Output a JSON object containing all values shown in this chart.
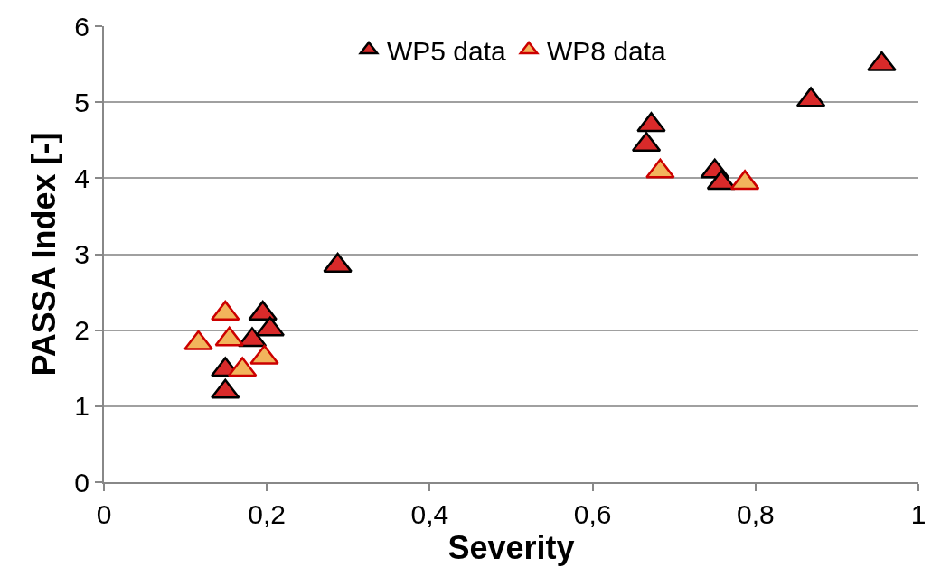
{
  "chart_data": {
    "type": "scatter",
    "xlabel": "Severity",
    "ylabel": "PASSA Index [-]",
    "xlim": [
      0,
      1
    ],
    "ylim": [
      0,
      6
    ],
    "xticks": [
      0,
      {
        "value": 0.2,
        "label": "0,2"
      },
      {
        "value": 0.4,
        "label": "0,4"
      },
      {
        "value": 0.6,
        "label": "0,6"
      },
      {
        "value": 0.8,
        "label": "0,8"
      },
      1
    ],
    "yticks": [
      0,
      1,
      2,
      3,
      4,
      5,
      6
    ],
    "grid": "y",
    "legend": "top",
    "marker": "triangle",
    "series": [
      {
        "name": "WP5 data",
        "color": "#d92a2a",
        "x": [
          0.149,
          0.149,
          0.18,
          0.182,
          0.195,
          0.204,
          0.287,
          0.666,
          0.672,
          0.75,
          0.758,
          0.868,
          0.955
        ],
        "values": [
          1.19,
          1.48,
          null,
          1.87,
          2.22,
          2.01,
          2.85,
          4.44,
          4.7,
          4.09,
          3.94,
          5.03,
          5.5
        ]
      },
      {
        "name": "WP8 data",
        "color": "#f2b45c",
        "x": [
          0.116,
          0.149,
          0.154,
          0.17,
          0.186,
          0.197,
          0.683,
          0.787
        ],
        "values": [
          1.83,
          2.22,
          1.88,
          1.48,
          null,
          1.64,
          4.09,
          3.94
        ]
      }
    ]
  }
}
